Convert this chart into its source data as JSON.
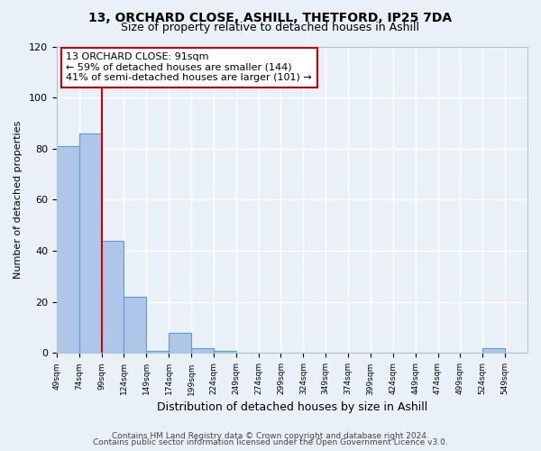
{
  "title1": "13, ORCHARD CLOSE, ASHILL, THETFORD, IP25 7DA",
  "title2": "Size of property relative to detached houses in Ashill",
  "xlabel": "Distribution of detached houses by size in Ashill",
  "ylabel": "Number of detached properties",
  "bar_labels": [
    "49sqm",
    "74sqm",
    "99sqm",
    "124sqm",
    "149sqm",
    "174sqm",
    "199sqm",
    "224sqm",
    "249sqm",
    "274sqm",
    "299sqm",
    "324sqm",
    "349sqm",
    "374sqm",
    "399sqm",
    "424sqm",
    "449sqm",
    "474sqm",
    "499sqm",
    "524sqm",
    "549sqm"
  ],
  "bar_values": [
    81,
    86,
    44,
    22,
    1,
    8,
    2,
    1,
    0,
    0,
    0,
    0,
    0,
    0,
    0,
    0,
    0,
    0,
    0,
    2,
    0
  ],
  "bar_color": "#aec6e8",
  "bar_edge_color": "#5a9fd4",
  "annotation_text": "13 ORCHARD CLOSE: 91sqm\n← 59% of detached houses are smaller (144)\n41% of semi-detached houses are larger (101) →",
  "annotation_box_color": "#ffffff",
  "annotation_border_color": "#cc0000",
  "red_line_color": "#cc0000",
  "ylim": [
    0,
    120
  ],
  "yticks": [
    0,
    20,
    40,
    60,
    80,
    100,
    120
  ],
  "footer1": "Contains HM Land Registry data © Crown copyright and database right 2024.",
  "footer2": "Contains public sector information licensed under the Open Government Licence v3.0.",
  "bg_color": "#eaf0f8",
  "grid_color": "#ffffff",
  "title1_fontsize": 10,
  "title2_fontsize": 9,
  "xlabel_fontsize": 9,
  "ylabel_fontsize": 8,
  "footer_fontsize": 6.5,
  "red_line_bar_index": 1.5
}
